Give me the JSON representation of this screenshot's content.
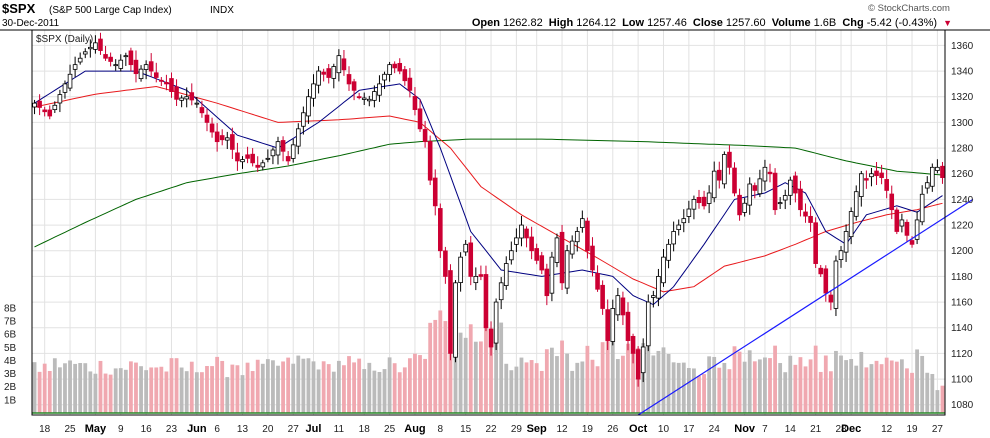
{
  "header": {
    "symbol": "$SPX",
    "index_name": "(S&P 500 Large Cap Index)",
    "type_tag": "INDX",
    "date": "30-Dec-2011",
    "watermark": "© StockCharts.com",
    "panel_label": "$SPX (Daily)"
  },
  "quote": {
    "open_label": "Open",
    "open": "1262.82",
    "high_label": "High",
    "high": "1264.12",
    "low_label": "Low",
    "low": "1257.46",
    "close_label": "Close",
    "close": "1257.60",
    "volume_label": "Volume",
    "volume": "1.6B",
    "chg_label": "Chg",
    "chg": "-5.42 (-0.43%)"
  },
  "colors": {
    "up_candle": "#000000",
    "down_candle": "#cc0033",
    "ma_short": "#000080",
    "ma_mid": "#e8191c",
    "ma_long": "#006400",
    "trendline": "#1a1aff",
    "vol_up": "#bbbbbb",
    "vol_down": "#f0a8b0",
    "grid": "#e2e2e2"
  },
  "chart_data": {
    "type": "candlestick",
    "title": "$SPX (Daily)",
    "y_ticks": [
      1080,
      1100,
      1120,
      1140,
      1160,
      1180,
      1200,
      1220,
      1240,
      1260,
      1280,
      1300,
      1320,
      1340,
      1360
    ],
    "ylim": [
      1072,
      1372
    ],
    "volume_ticks": [
      "1B",
      "2B",
      "3B",
      "4B",
      "5B",
      "6B",
      "7B",
      "8B"
    ],
    "volume_max_b": 8.9,
    "x_ticks": [
      {
        "label": "18",
        "i": 2,
        "bold": false
      },
      {
        "label": "25",
        "i": 7,
        "bold": false
      },
      {
        "label": "May",
        "i": 12,
        "bold": true
      },
      {
        "label": "9",
        "i": 17,
        "bold": false
      },
      {
        "label": "16",
        "i": 22,
        "bold": false
      },
      {
        "label": "23",
        "i": 27,
        "bold": false
      },
      {
        "label": "Jun",
        "i": 32,
        "bold": true
      },
      {
        "label": "6",
        "i": 36,
        "bold": false
      },
      {
        "label": "13",
        "i": 41,
        "bold": false
      },
      {
        "label": "20",
        "i": 46,
        "bold": false
      },
      {
        "label": "27",
        "i": 51,
        "bold": false
      },
      {
        "label": "Jul",
        "i": 55,
        "bold": true
      },
      {
        "label": "11",
        "i": 60,
        "bold": false
      },
      {
        "label": "18",
        "i": 65,
        "bold": false
      },
      {
        "label": "25",
        "i": 70,
        "bold": false
      },
      {
        "label": "Aug",
        "i": 75,
        "bold": true
      },
      {
        "label": "8",
        "i": 80,
        "bold": false
      },
      {
        "label": "15",
        "i": 85,
        "bold": false
      },
      {
        "label": "22",
        "i": 90,
        "bold": false
      },
      {
        "label": "29",
        "i": 95,
        "bold": false
      },
      {
        "label": "Sep",
        "i": 99,
        "bold": true
      },
      {
        "label": "12",
        "i": 104,
        "bold": false
      },
      {
        "label": "19",
        "i": 109,
        "bold": false
      },
      {
        "label": "26",
        "i": 114,
        "bold": false
      },
      {
        "label": "Oct",
        "i": 119,
        "bold": true
      },
      {
        "label": "10",
        "i": 124,
        "bold": false
      },
      {
        "label": "17",
        "i": 129,
        "bold": false
      },
      {
        "label": "24",
        "i": 134,
        "bold": false
      },
      {
        "label": "Nov",
        "i": 140,
        "bold": true
      },
      {
        "label": "7",
        "i": 144,
        "bold": false
      },
      {
        "label": "14",
        "i": 149,
        "bold": false
      },
      {
        "label": "21",
        "i": 154,
        "bold": false
      },
      {
        "label": "28",
        "i": 159,
        "bold": false
      },
      {
        "label": "Dec",
        "i": 161,
        "bold": true
      },
      {
        "label": "12",
        "i": 168,
        "bold": false
      },
      {
        "label": "19",
        "i": 173,
        "bold": false
      },
      {
        "label": "27",
        "i": 178,
        "bold": false
      }
    ],
    "close_anchors": [
      [
        0,
        1315
      ],
      [
        3,
        1305
      ],
      [
        6,
        1330
      ],
      [
        8,
        1345
      ],
      [
        10,
        1355
      ],
      [
        12,
        1362
      ],
      [
        14,
        1350
      ],
      [
        16,
        1345
      ],
      [
        18,
        1352
      ],
      [
        20,
        1338
      ],
      [
        22,
        1345
      ],
      [
        24,
        1335
      ],
      [
        26,
        1330
      ],
      [
        28,
        1318
      ],
      [
        30,
        1320
      ],
      [
        32,
        1315
      ],
      [
        34,
        1300
      ],
      [
        36,
        1285
      ],
      [
        38,
        1288
      ],
      [
        40,
        1270
      ],
      [
        42,
        1272
      ],
      [
        44,
        1265
      ],
      [
        46,
        1272
      ],
      [
        48,
        1285
      ],
      [
        50,
        1270
      ],
      [
        52,
        1295
      ],
      [
        54,
        1320
      ],
      [
        56,
        1340
      ],
      [
        58,
        1335
      ],
      [
        60,
        1352
      ],
      [
        62,
        1330
      ],
      [
        64,
        1320
      ],
      [
        66,
        1318
      ],
      [
        68,
        1330
      ],
      [
        70,
        1345
      ],
      [
        72,
        1340
      ],
      [
        74,
        1325
      ],
      [
        76,
        1295
      ],
      [
        77,
        1285
      ],
      [
        78,
        1255
      ],
      [
        79,
        1235
      ],
      [
        80,
        1200
      ],
      [
        81,
        1180
      ],
      [
        82,
        1120
      ],
      [
        83,
        1175
      ],
      [
        84,
        1195
      ],
      [
        85,
        1205
      ],
      [
        86,
        1180
      ],
      [
        88,
        1180
      ],
      [
        89,
        1140
      ],
      [
        90,
        1125
      ],
      [
        91,
        1160
      ],
      [
        92,
        1175
      ],
      [
        93,
        1190
      ],
      [
        95,
        1210
      ],
      [
        96,
        1220
      ],
      [
        98,
        1200
      ],
      [
        100,
        1185
      ],
      [
        101,
        1165
      ],
      [
        102,
        1195
      ],
      [
        103,
        1210
      ],
      [
        104,
        1175
      ],
      [
        105,
        1200
      ],
      [
        107,
        1215
      ],
      [
        108,
        1225
      ],
      [
        109,
        1200
      ],
      [
        111,
        1170
      ],
      [
        112,
        1155
      ],
      [
        113,
        1130
      ],
      [
        114,
        1155
      ],
      [
        115,
        1165
      ],
      [
        116,
        1150
      ],
      [
        117,
        1130
      ],
      [
        118,
        1120
      ],
      [
        119,
        1100
      ],
      [
        120,
        1125
      ],
      [
        121,
        1160
      ],
      [
        122,
        1165
      ],
      [
        123,
        1180
      ],
      [
        124,
        1195
      ],
      [
        126,
        1215
      ],
      [
        128,
        1225
      ],
      [
        130,
        1240
      ],
      [
        132,
        1235
      ],
      [
        133,
        1245
      ],
      [
        134,
        1262
      ],
      [
        135,
        1255
      ],
      [
        136,
        1275
      ],
      [
        137,
        1265
      ],
      [
        138,
        1245
      ],
      [
        139,
        1228
      ],
      [
        140,
        1237
      ],
      [
        141,
        1252
      ],
      [
        142,
        1247
      ],
      [
        144,
        1265
      ],
      [
        145,
        1260
      ],
      [
        146,
        1232
      ],
      [
        148,
        1243
      ],
      [
        149,
        1255
      ],
      [
        150,
        1245
      ],
      [
        151,
        1232
      ],
      [
        153,
        1222
      ],
      [
        154,
        1190
      ],
      [
        155,
        1182
      ],
      [
        156,
        1167
      ],
      [
        157,
        1160
      ],
      [
        158,
        1192
      ],
      [
        159,
        1200
      ],
      [
        160,
        1215
      ],
      [
        162,
        1246
      ],
      [
        163,
        1260
      ],
      [
        164,
        1255
      ],
      [
        165,
        1260
      ],
      [
        167,
        1257
      ],
      [
        168,
        1247
      ],
      [
        169,
        1232
      ],
      [
        170,
        1215
      ],
      [
        171,
        1224
      ],
      [
        172,
        1212
      ],
      [
        173,
        1205
      ],
      [
        174,
        1224
      ],
      [
        175,
        1244
      ],
      [
        176,
        1253
      ],
      [
        177,
        1265
      ],
      [
        178,
        1265
      ],
      [
        179,
        1257
      ]
    ],
    "ma_short_anchors": [
      [
        0,
        1315
      ],
      [
        10,
        1340
      ],
      [
        20,
        1340
      ],
      [
        30,
        1325
      ],
      [
        40,
        1290
      ],
      [
        48,
        1280
      ],
      [
        56,
        1300
      ],
      [
        64,
        1325
      ],
      [
        72,
        1330
      ],
      [
        76,
        1318
      ],
      [
        80,
        1280
      ],
      [
        86,
        1215
      ],
      [
        92,
        1185
      ],
      [
        100,
        1180
      ],
      [
        108,
        1185
      ],
      [
        114,
        1180
      ],
      [
        118,
        1165
      ],
      [
        122,
        1158
      ],
      [
        126,
        1172
      ],
      [
        132,
        1205
      ],
      [
        138,
        1240
      ],
      [
        144,
        1245
      ],
      [
        148,
        1253
      ],
      [
        152,
        1245
      ],
      [
        156,
        1215
      ],
      [
        160,
        1205
      ],
      [
        164,
        1228
      ],
      [
        170,
        1235
      ],
      [
        174,
        1230
      ],
      [
        179,
        1243
      ]
    ],
    "ma_mid_anchors": [
      [
        0,
        1312
      ],
      [
        12,
        1322
      ],
      [
        24,
        1328
      ],
      [
        36,
        1315
      ],
      [
        48,
        1300
      ],
      [
        60,
        1302
      ],
      [
        70,
        1305
      ],
      [
        76,
        1300
      ],
      [
        82,
        1280
      ],
      [
        88,
        1250
      ],
      [
        96,
        1228
      ],
      [
        104,
        1210
      ],
      [
        112,
        1192
      ],
      [
        118,
        1178
      ],
      [
        124,
        1168
      ],
      [
        130,
        1172
      ],
      [
        136,
        1188
      ],
      [
        144,
        1196
      ],
      [
        150,
        1205
      ],
      [
        156,
        1215
      ],
      [
        162,
        1222
      ],
      [
        168,
        1228
      ],
      [
        174,
        1232
      ],
      [
        179,
        1237
      ]
    ],
    "ma_long_anchors": [
      [
        0,
        1203
      ],
      [
        10,
        1222
      ],
      [
        20,
        1240
      ],
      [
        30,
        1253
      ],
      [
        40,
        1260
      ],
      [
        50,
        1266
      ],
      [
        60,
        1274
      ],
      [
        70,
        1283
      ],
      [
        76,
        1285
      ],
      [
        86,
        1287
      ],
      [
        100,
        1287
      ],
      [
        120,
        1285
      ],
      [
        140,
        1282
      ],
      [
        150,
        1280
      ],
      [
        160,
        1270
      ],
      [
        170,
        1262
      ],
      [
        179,
        1259
      ]
    ],
    "trendline": {
      "from": [
        119,
        1072
      ],
      "to": [
        185,
        1240
      ]
    }
  }
}
